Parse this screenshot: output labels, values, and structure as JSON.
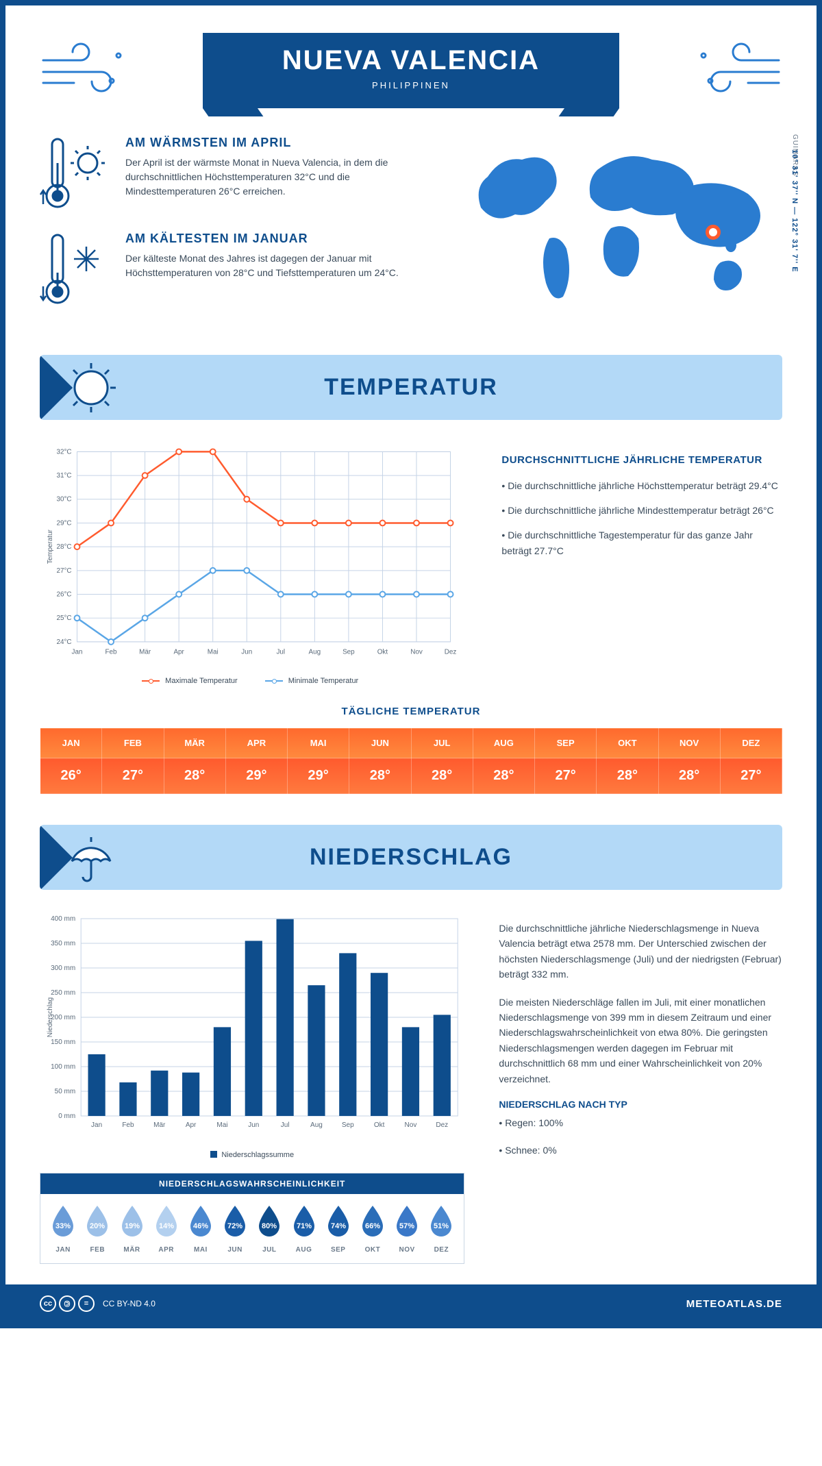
{
  "header": {
    "title": "NUEVA VALENCIA",
    "subtitle": "PHILIPPINEN"
  },
  "wind_icon_color": "#2a7cd0",
  "warmest": {
    "title": "AM WÄRMSTEN IM APRIL",
    "text": "Der April ist der wärmste Monat in Nueva Valencia, in dem die durchschnittlichen Höchsttemperaturen 32°C und die Mindesttemperaturen 26°C erreichen."
  },
  "coldest": {
    "title": "AM KÄLTESTEN IM JANUAR",
    "text": "Der kälteste Monat des Jahres ist dagegen der Januar mit Höchsttemperaturen von 28°C und Tiefsttemperaturen um 24°C."
  },
  "map": {
    "region": "GUIMARAS",
    "coords": "10° 31' 37'' N — 122° 31' 7'' E",
    "land_color": "#2a7cd0",
    "pin_color": "#ff5b2e"
  },
  "sections": {
    "temperature": "TEMPERATUR",
    "precipitation": "NIEDERSCHLAG"
  },
  "colors": {
    "primary": "#0e4d8c",
    "light_blue": "#b3d9f7",
    "grid": "#c5d3e6",
    "max_line": "#ff5b2e",
    "min_line": "#5aa6e6",
    "bar": "#0e4d8c"
  },
  "temp_chart": {
    "ylabel": "Temperatur",
    "months": [
      "Jan",
      "Feb",
      "Mär",
      "Apr",
      "Mai",
      "Jun",
      "Jul",
      "Aug",
      "Sep",
      "Okt",
      "Nov",
      "Dez"
    ],
    "ymin": 24,
    "ymax": 32,
    "ystep": 1,
    "max_values": [
      28,
      29,
      31,
      32,
      32,
      30,
      29,
      29,
      29,
      29,
      29,
      29
    ],
    "min_values": [
      25,
      24,
      25,
      26,
      27,
      27,
      26,
      26,
      26,
      26,
      26,
      26
    ],
    "legend_max": "Maximale Temperatur",
    "legend_min": "Minimale Temperatur"
  },
  "temp_info": {
    "title": "DURCHSCHNITTLICHE JÄHRLICHE TEMPERATUR",
    "line1": "• Die durchschnittliche jährliche Höchsttemperatur beträgt 29.4°C",
    "line2": "• Die durchschnittliche jährliche Mindesttemperatur beträgt 26°C",
    "line3": "• Die durchschnittliche Tagestemperatur für das ganze Jahr beträgt 27.7°C"
  },
  "daily": {
    "title": "TÄGLICHE TEMPERATUR",
    "months": [
      "JAN",
      "FEB",
      "MÄR",
      "APR",
      "MAI",
      "JUN",
      "JUL",
      "AUG",
      "SEP",
      "OKT",
      "NOV",
      "DEZ"
    ],
    "values": [
      "26°",
      "27°",
      "28°",
      "29°",
      "29°",
      "28°",
      "28°",
      "28°",
      "27°",
      "28°",
      "28°",
      "27°"
    ],
    "hdr_bg_left": "#ff6a2e",
    "hdr_bg_right": "#ff8a3e",
    "val_bg_left": "#ff5b2e",
    "val_bg_right": "#ff7a3e"
  },
  "precip_chart": {
    "ylabel": "Niederschlag",
    "months": [
      "Jan",
      "Feb",
      "Mär",
      "Apr",
      "Mai",
      "Jun",
      "Jul",
      "Aug",
      "Sep",
      "Okt",
      "Nov",
      "Dez"
    ],
    "ymin": 0,
    "ymax": 400,
    "ystep": 50,
    "values": [
      125,
      68,
      92,
      88,
      180,
      355,
      399,
      265,
      330,
      290,
      180,
      205
    ],
    "legend": "Niederschlagssumme"
  },
  "precip_info": {
    "p1": "Die durchschnittliche jährliche Niederschlagsmenge in Nueva Valencia beträgt etwa 2578 mm. Der Unterschied zwischen der höchsten Niederschlagsmenge (Juli) und der niedrigsten (Februar) beträgt 332 mm.",
    "p2": "Die meisten Niederschläge fallen im Juli, mit einer monatlichen Niederschlagsmenge von 399 mm in diesem Zeitraum und einer Niederschlagswahrscheinlichkeit von etwa 80%. Die geringsten Niederschlagsmengen werden dagegen im Februar mit durchschnittlich 68 mm und einer Wahrscheinlichkeit von 20% verzeichnet.",
    "type_title": "NIEDERSCHLAG NACH TYP",
    "type1": "• Regen: 100%",
    "type2": "• Schnee: 0%"
  },
  "probability": {
    "title": "NIEDERSCHLAGSWAHRSCHEINLICHKEIT",
    "months": [
      "JAN",
      "FEB",
      "MÄR",
      "APR",
      "MAI",
      "JUN",
      "JUL",
      "AUG",
      "SEP",
      "OKT",
      "NOV",
      "DEZ"
    ],
    "pct": [
      "33%",
      "20%",
      "19%",
      "14%",
      "46%",
      "72%",
      "80%",
      "71%",
      "74%",
      "66%",
      "57%",
      "51%"
    ],
    "fill_colors": [
      "#6a9cd8",
      "#9cc0e8",
      "#9cc0e8",
      "#b3d0ef",
      "#4a88d0",
      "#1a5da8",
      "#0e4d8c",
      "#1a5da8",
      "#1a5da8",
      "#2a6db8",
      "#3a78c8",
      "#4a88d0"
    ]
  },
  "footer": {
    "license": "CC BY-ND 4.0",
    "brand": "METEOATLAS.DE"
  }
}
